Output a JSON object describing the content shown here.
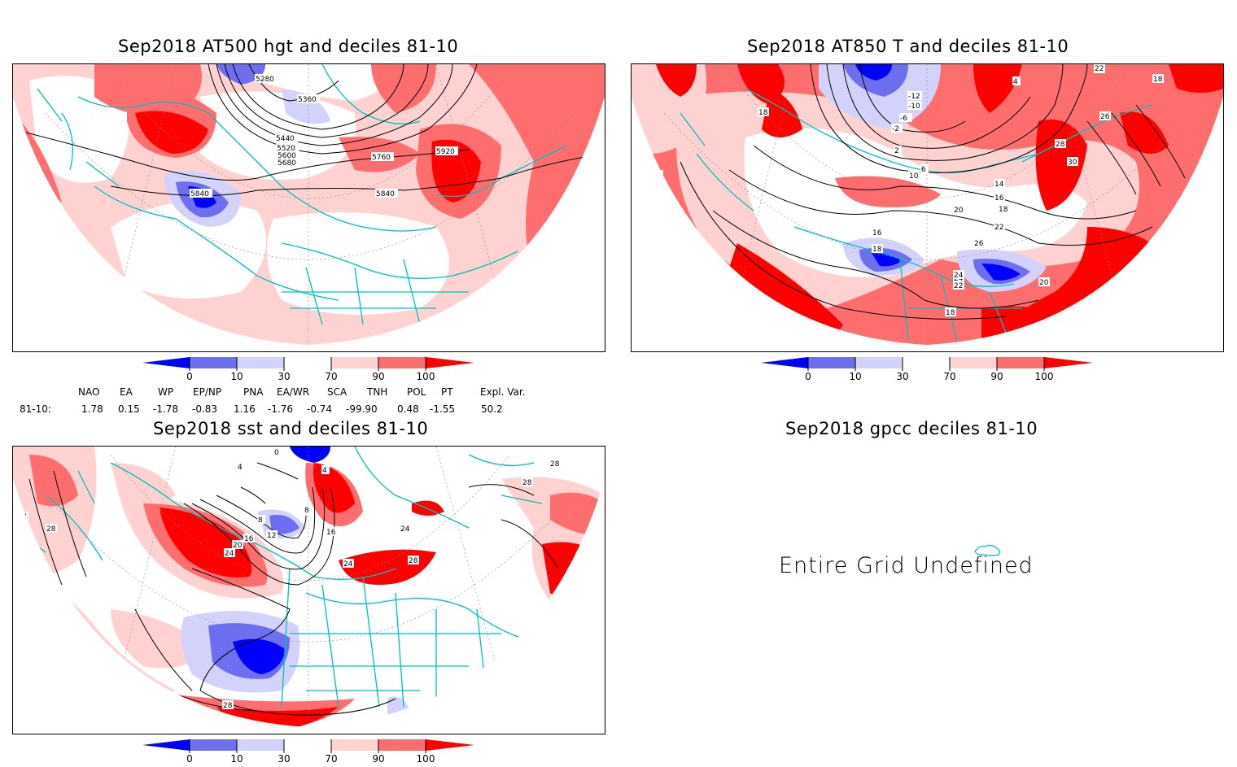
{
  "panels": [
    {
      "title": "Sep2018 AT500 hgt and deciles 81-10",
      "contour_labels": [
        "5280",
        "5360",
        "5440",
        "5520",
        "5600",
        "5680",
        "5760",
        "5920",
        "5840",
        "5840"
      ]
    },
    {
      "title": "Sep2018 AT850 T and deciles 81-10",
      "contour_labels": [
        "-12",
        "-10",
        "-6",
        "-2",
        "2",
        "6",
        "10",
        "14",
        "16",
        "18",
        "20",
        "22",
        "24",
        "26",
        "28",
        "30",
        "18",
        "18",
        "18",
        "16",
        "20",
        "22",
        "24",
        "22",
        "18",
        "4",
        "22",
        "18",
        "26"
      ]
    },
    {
      "title": "Sep2018 sst and deciles 81-10",
      "contour_labels": [
        "0",
        "4",
        "8",
        "12",
        "16",
        "20",
        "24",
        "28",
        "24",
        "28",
        "24",
        "28",
        "28",
        "24",
        "28",
        "4",
        "8",
        "16"
      ]
    },
    {
      "title": "Sep2018 gpcc deciles 81-10",
      "message": "Entire Grid Undefined"
    }
  ],
  "colorbar": {
    "ticks": [
      "0",
      "10",
      "30",
      "70",
      "90",
      "100"
    ],
    "colors": [
      "#0000ff",
      "#6e6ef0",
      "#d2d2fa",
      "#ffffff",
      "#ffd2d2",
      "#ff6e6e",
      "#ff0000"
    ]
  },
  "indices": {
    "names": [
      "NAO",
      "EA",
      "WP",
      "EP/NP",
      "PNA",
      "EA/WR",
      "SCA",
      "TNH",
      "POL",
      "PT",
      "Expl. Var."
    ],
    "row_label": "81-10:",
    "values": [
      "1.78",
      "0.15",
      "-1.78",
      "-0.83",
      "1.16",
      "-1.76",
      "-0.74",
      "-99.90",
      "0.48",
      "-1.55",
      "50.2"
    ]
  }
}
